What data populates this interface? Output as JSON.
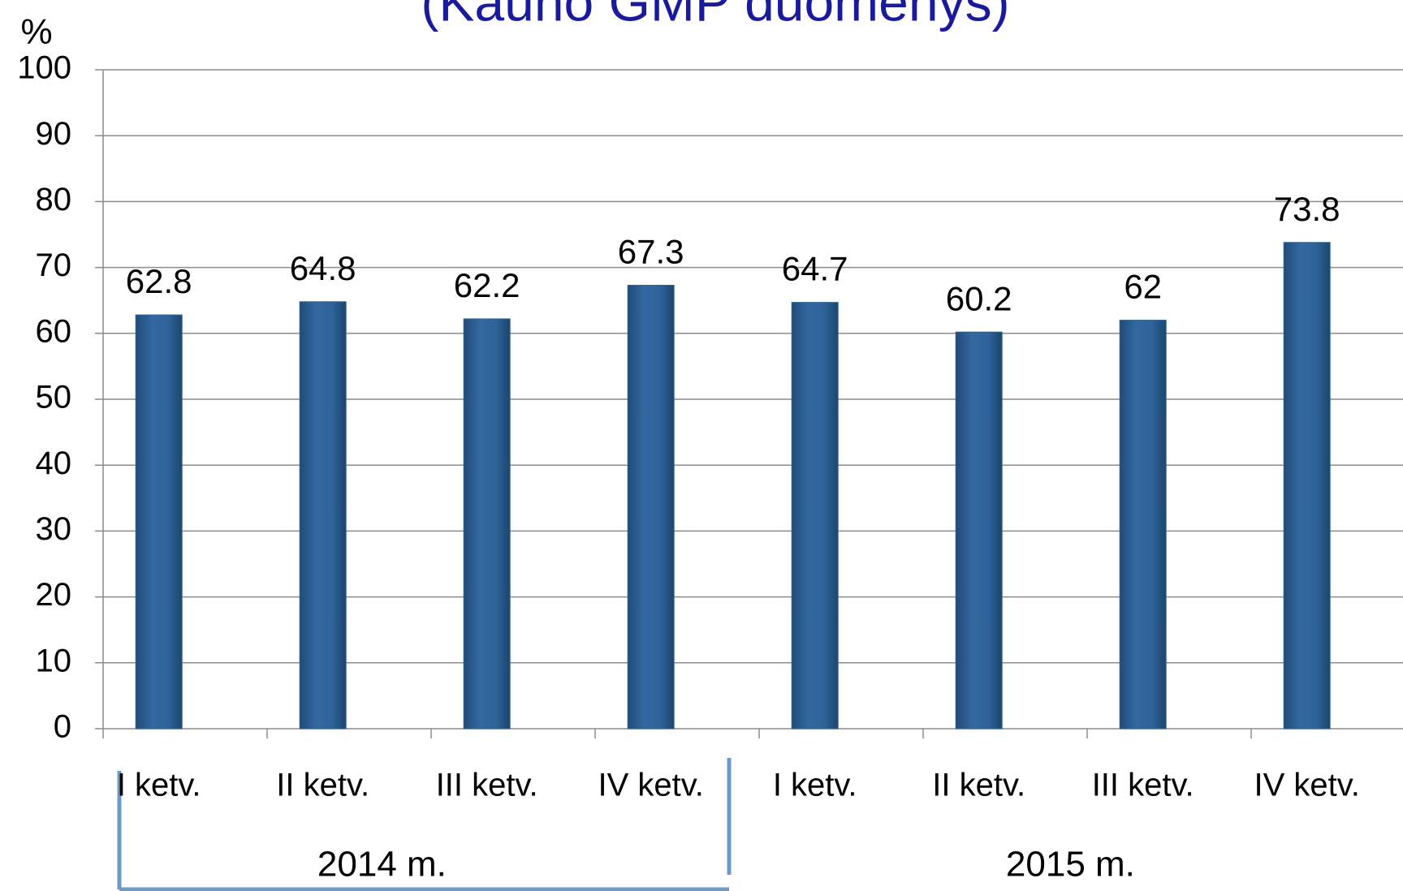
{
  "chart_data": {
    "type": "bar",
    "title": "(Kauno GMP duomenys)",
    "y_label": "%",
    "categories": [
      "I ketv.",
      "II ketv.",
      "III ketv.",
      "IV ketv.",
      "I ketv.",
      "II ketv.",
      "III ketv.",
      "IV ketv."
    ],
    "groups": [
      "2014 m.",
      "2015 m."
    ],
    "values": [
      62.8,
      64.8,
      62.2,
      67.3,
      64.7,
      60.2,
      62,
      73.8
    ],
    "color": "#2e6399",
    "ylim": [
      0,
      100
    ],
    "yticks": [
      0,
      10,
      20,
      30,
      40,
      50,
      60,
      70,
      80,
      90,
      100
    ],
    "grid": true
  }
}
